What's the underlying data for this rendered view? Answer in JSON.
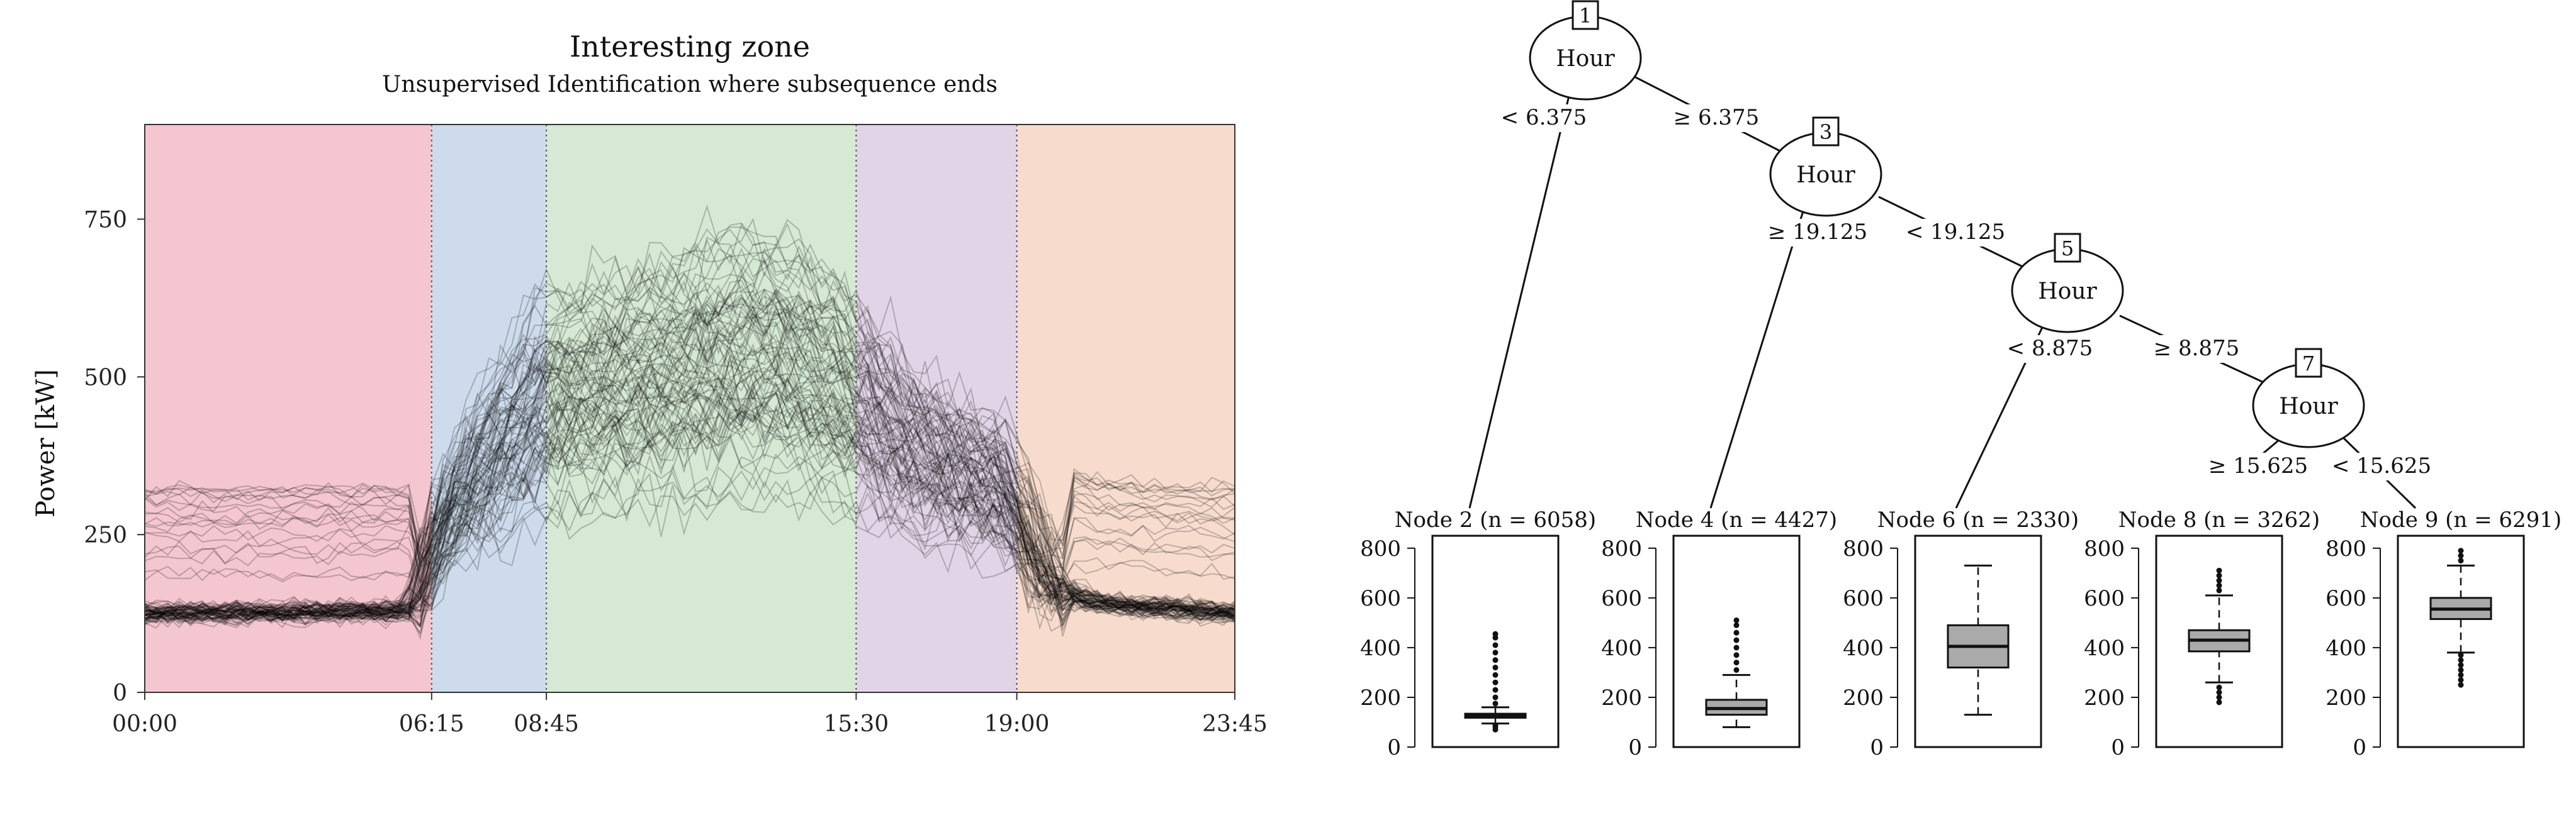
{
  "chart_data": [
    {
      "type": "line",
      "title": "Interesting zone",
      "subtitle": "Unsupervised Identification where subsequence ends",
      "ylabel": "Power [kW]",
      "xlabel": "",
      "x_unit": "hours",
      "xlim": [
        0,
        23.75
      ],
      "ylim": [
        0,
        900
      ],
      "y_ticks": [
        0,
        250,
        500,
        750
      ],
      "x_tick_values": [
        0,
        6.25,
        8.75,
        15.5,
        19,
        23.75
      ],
      "x_tick_labels": [
        "00:00",
        "06:15",
        "08:45",
        "15:30",
        "19:00",
        "23:45"
      ],
      "zones": [
        {
          "start": 0,
          "end": 6.25,
          "color": "#f4c6cf"
        },
        {
          "start": 6.25,
          "end": 8.75,
          "color": "#cddbec"
        },
        {
          "start": 8.75,
          "end": 15.5,
          "color": "#d5e9d4"
        },
        {
          "start": 15.5,
          "end": 19,
          "color": "#e2d4e7"
        },
        {
          "start": 19,
          "end": 23.75,
          "color": "#f7dccd"
        }
      ],
      "zone_boundaries": [
        6.25,
        8.75,
        15.5,
        19
      ],
      "series_count": 90,
      "profile_hours": [
        0,
        5.9,
        6.25,
        6.6,
        7.3,
        8,
        8.75,
        10,
        11.5,
        13,
        14.2,
        15.5,
        16.5,
        17.5,
        18.5,
        19,
        19.4,
        19.8,
        20.5,
        21.5,
        22.5,
        23.75
      ],
      "profile_kw": [
        125,
        128,
        230,
        300,
        390,
        470,
        540,
        560,
        590,
        620,
        610,
        540,
        450,
        400,
        370,
        320,
        230,
        170,
        145,
        135,
        132,
        125
      ],
      "line_color": "#000000"
    },
    {
      "type": "decision_tree",
      "nodes": [
        {
          "id": "1",
          "variable": "Hour"
        },
        {
          "id": "3",
          "variable": "Hour"
        },
        {
          "id": "5",
          "variable": "Hour"
        },
        {
          "id": "7",
          "variable": "Hour"
        }
      ],
      "edges": [
        {
          "from": "1",
          "to": "2",
          "label": "< 6.375"
        },
        {
          "from": "1",
          "to": "3",
          "label": "≥ 6.375"
        },
        {
          "from": "3",
          "to": "4",
          "label": "≥ 19.125"
        },
        {
          "from": "3",
          "to": "5",
          "label": "< 19.125"
        },
        {
          "from": "5",
          "to": "6",
          "label": "< 8.875"
        },
        {
          "from": "5",
          "to": "7",
          "label": "≥ 8.875"
        },
        {
          "from": "7",
          "to": "8",
          "label": "≥ 15.625"
        },
        {
          "from": "7",
          "to": "9",
          "label": "< 15.625"
        }
      ],
      "box_ylim": [
        0,
        850
      ],
      "box_y_ticks": [
        0,
        200,
        400,
        600,
        800
      ],
      "box_fill": "#aaaaaa",
      "leaves": [
        {
          "id": "2",
          "label": "Node 2 (n = 6058)",
          "whisker_low": 95,
          "q1": 118,
          "median": 126,
          "q3": 134,
          "whisker_high": 160,
          "outliers_low": [
            70,
            80,
            88
          ],
          "outliers_high": [
            175,
            200,
            230,
            260,
            290,
            320,
            350,
            380,
            410,
            440,
            455
          ]
        },
        {
          "id": "4",
          "label": "Node 4 (n = 4427)",
          "whisker_low": 80,
          "q1": 130,
          "median": 155,
          "q3": 190,
          "whisker_high": 290,
          "outliers_low": [],
          "outliers_high": [
            310,
            340,
            370,
            400,
            430,
            460,
            490,
            510
          ]
        },
        {
          "id": "6",
          "label": "Node 6 (n = 2330)",
          "whisker_low": 130,
          "q1": 320,
          "median": 405,
          "q3": 490,
          "whisker_high": 730,
          "outliers_low": [],
          "outliers_high": []
        },
        {
          "id": "8",
          "label": "Node 8 (n = 3262)",
          "whisker_low": 260,
          "q1": 385,
          "median": 430,
          "q3": 470,
          "whisker_high": 610,
          "outliers_low": [
            180,
            200,
            220,
            240
          ],
          "outliers_high": [
            630,
            650,
            670,
            690,
            710
          ]
        },
        {
          "id": "9",
          "label": "Node 9 (n = 6291)",
          "whisker_low": 380,
          "q1": 515,
          "median": 555,
          "q3": 600,
          "whisker_high": 730,
          "outliers_low": [
            250,
            270,
            290,
            310,
            330,
            350,
            370
          ],
          "outliers_high": [
            750,
            770,
            790
          ]
        }
      ]
    }
  ]
}
